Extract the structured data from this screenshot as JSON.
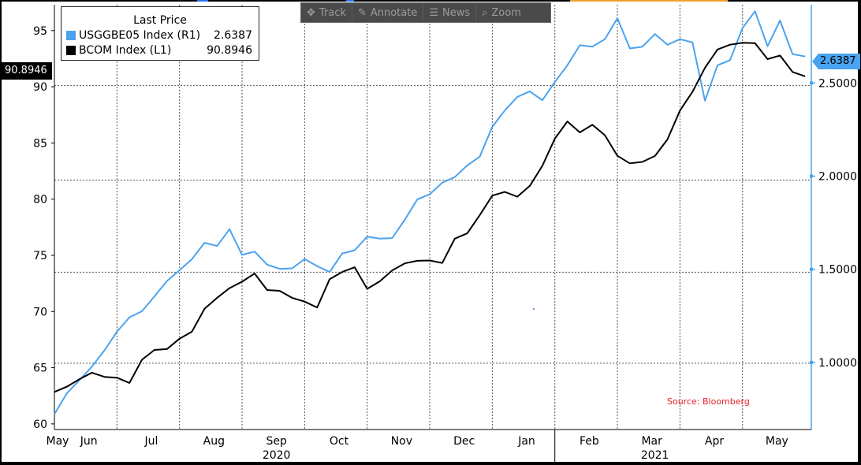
{
  "toolbar": [
    {
      "label": "Track",
      "icon": "crosshair-icon"
    },
    {
      "label": "Annotate",
      "icon": "pencil-icon"
    },
    {
      "label": "News",
      "icon": "news-icon"
    },
    {
      "label": "Zoom",
      "icon": "magnifier-icon"
    }
  ],
  "legend": {
    "title": "Last Price",
    "items": [
      {
        "name": "USGGBE05 Index  (R1)",
        "value": "2.6387",
        "color": "#4aa3ef"
      },
      {
        "name": "BCOM Index  (L1)",
        "value": "90.8946",
        "color": "#000000"
      }
    ]
  },
  "flags": {
    "left": "90.8946",
    "right": "2.6387"
  },
  "source": "Source: Bloomberg",
  "colors": {
    "background": "#ffffff",
    "frame": "#000000",
    "blue": "#4aa3ef",
    "black": "#000000",
    "source": "#e8202a"
  },
  "chart_data": {
    "type": "line",
    "x_unit": "months since 2020-05-01",
    "x_ticks": [
      {
        "label": "May",
        "x": 0.05
      },
      {
        "label": "Jun",
        "x": 0.55
      },
      {
        "label": "Jul",
        "x": 1.55
      },
      {
        "label": "Aug",
        "x": 2.55
      },
      {
        "label": "Sep",
        "x": 3.55
      },
      {
        "label": "Oct",
        "x": 4.55
      },
      {
        "label": "Nov",
        "x": 5.55
      },
      {
        "label": "Dec",
        "x": 6.55
      },
      {
        "label": "Jan",
        "x": 7.55
      },
      {
        "label": "Feb",
        "x": 8.55
      },
      {
        "label": "Mar",
        "x": 9.55
      },
      {
        "label": "Apr",
        "x": 10.55
      },
      {
        "label": "May",
        "x": 11.55
      }
    ],
    "month_gridlines": [
      1,
      2,
      3,
      4,
      5,
      6,
      7,
      8,
      9,
      10,
      11
    ],
    "year_labels": [
      {
        "label": "2020",
        "x": 3.55
      },
      {
        "label": "2021",
        "x": 9.6
      }
    ],
    "year_separator": 8.0,
    "xlim": [
      0,
      12.1
    ],
    "left_axis": {
      "ylim": [
        59.5,
        97.3
      ],
      "ticks": [
        60,
        65,
        70,
        75,
        80,
        85,
        90,
        95
      ],
      "gridlines": [
        65.4,
        73.5,
        81.7,
        90.1
      ]
    },
    "right_axis": {
      "ylim": [
        0.64,
        2.92
      ],
      "ticks": [
        1.0,
        1.5,
        2.0,
        2.5
      ],
      "tick_labels": [
        "1.0000",
        "1.5000",
        "2.0000",
        "2.5000"
      ]
    },
    "series": [
      {
        "name": "USGGBE05 Index",
        "axis": "right",
        "color": "#4aa3ef",
        "x": [
          0,
          0.2,
          0.4,
          0.6,
          0.8,
          1.0,
          1.2,
          1.4,
          1.6,
          1.8,
          2.0,
          2.2,
          2.4,
          2.6,
          2.8,
          3.0,
          3.2,
          3.4,
          3.6,
          3.8,
          4.0,
          4.2,
          4.4,
          4.6,
          4.8,
          5.0,
          5.2,
          5.4,
          5.6,
          5.8,
          6.0,
          6.2,
          6.4,
          6.6,
          6.8,
          7.0,
          7.2,
          7.4,
          7.6,
          7.8,
          8.0,
          8.2,
          8.4,
          8.6,
          8.8,
          9.0,
          9.2,
          9.4,
          9.6,
          9.8,
          10.0,
          10.2,
          10.4,
          10.6,
          10.8,
          11.0,
          11.2,
          11.4,
          11.6,
          11.8,
          12.0
        ],
        "values": [
          0.72,
          0.84,
          0.9,
          0.98,
          1.06,
          1.17,
          1.24,
          1.28,
          1.35,
          1.44,
          1.49,
          1.56,
          1.64,
          1.63,
          1.71,
          1.58,
          1.59,
          1.53,
          1.5,
          1.51,
          1.55,
          1.52,
          1.48,
          1.59,
          1.6,
          1.68,
          1.66,
          1.67,
          1.76,
          1.88,
          1.9,
          1.97,
          1.99,
          2.06,
          2.1,
          2.27,
          2.35,
          2.43,
          2.45,
          2.41,
          2.5,
          2.6,
          2.7,
          2.7,
          2.73,
          2.85,
          2.68,
          2.7,
          2.76,
          2.71,
          2.73,
          2.72,
          2.4,
          2.6,
          2.62,
          2.8,
          2.88,
          2.7,
          2.83,
          2.66,
          2.64
        ]
      },
      {
        "name": "BCOM Index",
        "axis": "left",
        "color": "#000000",
        "x": [
          0,
          0.2,
          0.4,
          0.6,
          0.8,
          1.0,
          1.2,
          1.4,
          1.6,
          1.8,
          2.0,
          2.2,
          2.4,
          2.6,
          2.8,
          3.0,
          3.2,
          3.4,
          3.6,
          3.8,
          4.0,
          4.2,
          4.4,
          4.6,
          4.8,
          5.0,
          5.2,
          5.4,
          5.6,
          5.8,
          6.0,
          6.2,
          6.4,
          6.6,
          6.8,
          7.0,
          7.2,
          7.4,
          7.6,
          7.8,
          8.0,
          8.2,
          8.4,
          8.6,
          8.8,
          9.0,
          9.2,
          9.4,
          9.6,
          9.8,
          10.0,
          10.2,
          10.4,
          10.6,
          10.8,
          11.0,
          11.2,
          11.4,
          11.6,
          11.8,
          12.0
        ],
        "values": [
          62.8,
          63.4,
          63.9,
          64.6,
          64.1,
          64.2,
          63.6,
          65.8,
          66.5,
          66.7,
          67.5,
          68.3,
          70.2,
          71.3,
          72.0,
          72.7,
          73.3,
          72.0,
          71.8,
          71.3,
          70.8,
          70.4,
          72.8,
          73.6,
          73.9,
          72.1,
          72.6,
          73.7,
          74.2,
          74.6,
          74.5,
          74.4,
          76.4,
          77.0,
          78.5,
          80.4,
          80.6,
          80.3,
          81.1,
          83.0,
          85.3,
          87.0,
          85.9,
          86.7,
          85.6,
          83.9,
          83.1,
          83.4,
          83.8,
          85.4,
          87.8,
          89.6,
          91.6,
          93.4,
          93.7,
          94.0,
          93.8,
          92.5,
          92.7,
          91.4,
          90.89
        ]
      }
    ]
  }
}
